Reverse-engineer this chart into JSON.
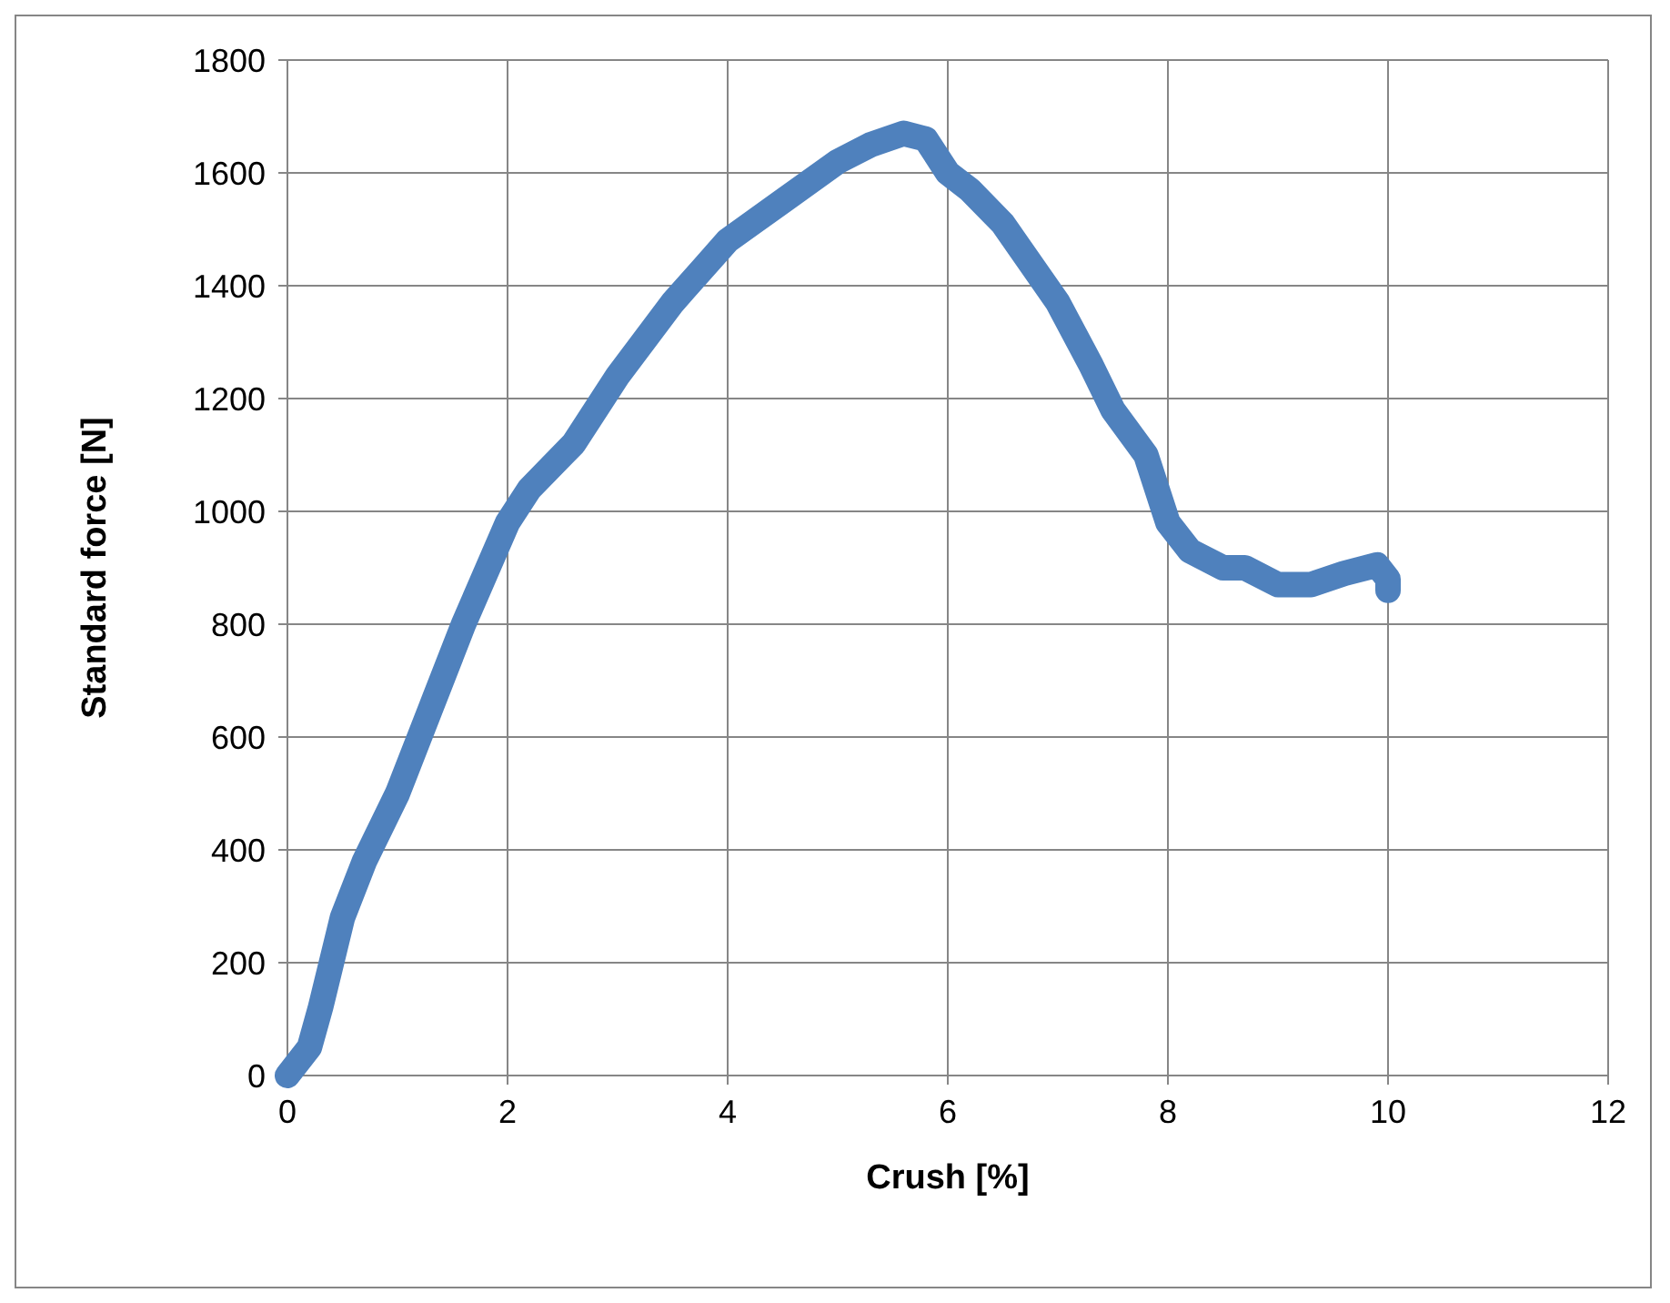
{
  "chart_data": {
    "type": "line",
    "xlabel": "Crush [%]",
    "ylabel": "Standard force [N]",
    "xlim": [
      0,
      12
    ],
    "xticks": [
      0,
      2,
      4,
      6,
      8,
      10,
      12
    ],
    "ylim": [
      0,
      1800
    ],
    "yticks": [
      0,
      200,
      400,
      600,
      800,
      1000,
      1200,
      1400,
      1600,
      1800
    ],
    "grid": true,
    "line_style": "solid",
    "series": [
      {
        "color": "#4f81bd",
        "x": [
          0,
          0.2,
          0.3,
          0.5,
          0.7,
          1,
          1.3,
          1.6,
          2,
          2.2,
          2.6,
          3,
          3.5,
          4,
          4.5,
          5,
          5.3,
          5.6,
          5.8,
          6,
          6.2,
          6.5,
          7,
          7.3,
          7.5,
          7.8,
          8,
          8.2,
          8.5,
          8.7,
          9,
          9.3,
          9.6,
          9.9,
          10,
          10
        ],
        "values": [
          0,
          50,
          120,
          280,
          380,
          500,
          650,
          800,
          980,
          1040,
          1120,
          1240,
          1370,
          1480,
          1550,
          1620,
          1650,
          1670,
          1660,
          1600,
          1570,
          1510,
          1370,
          1260,
          1180,
          1100,
          980,
          930,
          900,
          900,
          870,
          870,
          890,
          905,
          880,
          860
        ]
      }
    ]
  }
}
